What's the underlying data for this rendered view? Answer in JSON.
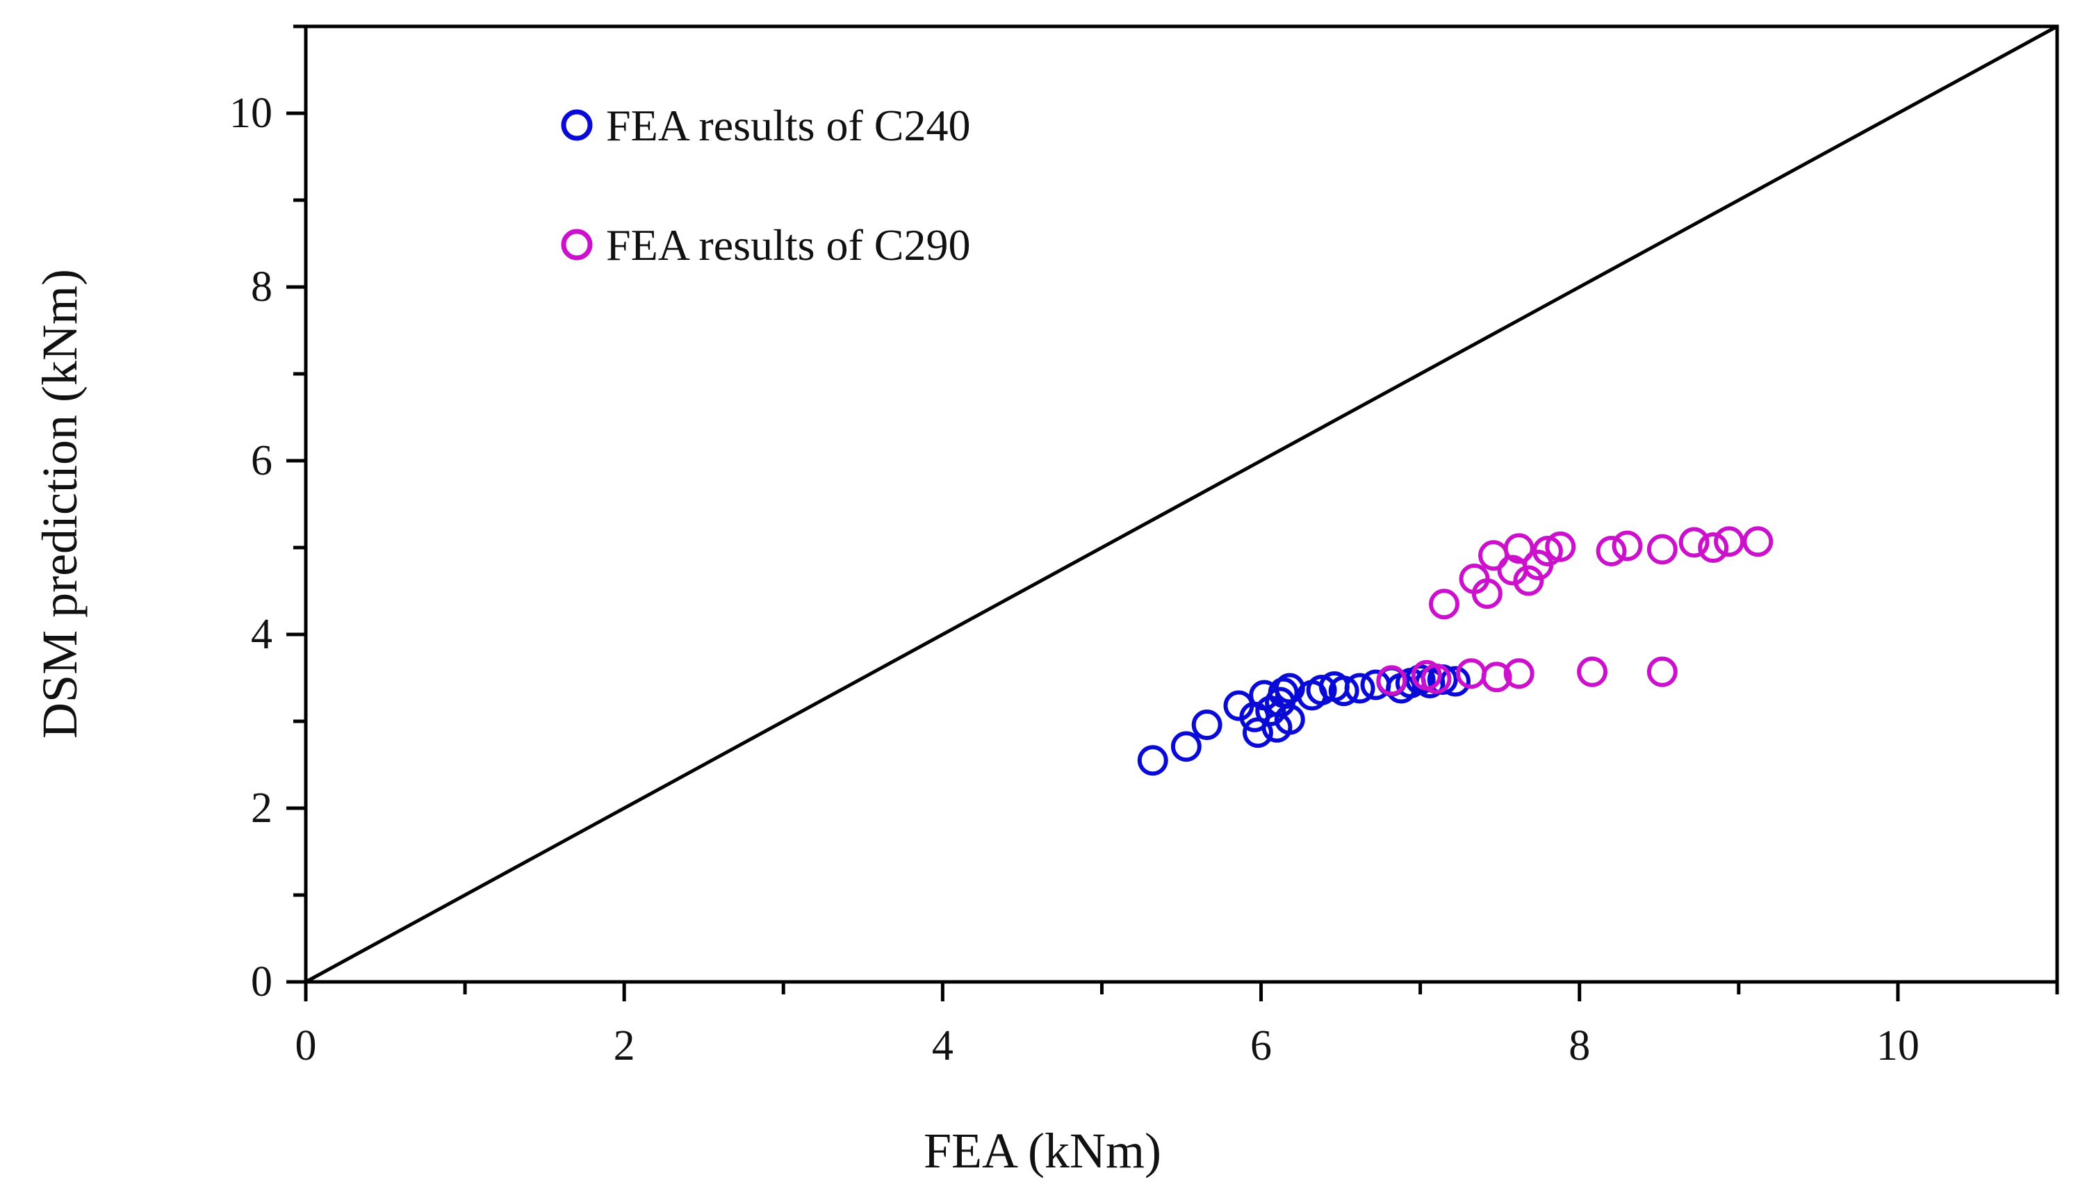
{
  "chart_data": {
    "type": "scatter",
    "title": "",
    "xlabel": "FEA (kNm)",
    "ylabel": "DSM prediction (kNm)",
    "xlim": [
      0,
      11
    ],
    "ylim": [
      0,
      11
    ],
    "x_ticks": [
      0,
      2,
      4,
      6,
      8,
      10
    ],
    "y_ticks": [
      0,
      2,
      4,
      6,
      8,
      10
    ],
    "x_ticks_minor": [
      1,
      3,
      5,
      7,
      9,
      11
    ],
    "y_ticks_minor": [
      1,
      3,
      5,
      7,
      9,
      11
    ],
    "grid": false,
    "legend_position": "top-left",
    "reference_line": {
      "name": "1:1 line",
      "from": [
        0,
        0
      ],
      "to": [
        11,
        11
      ],
      "color": "#000000"
    },
    "series": [
      {
        "name": "FEA results of C240",
        "color": "#0a0ad6",
        "points": [
          [
            5.32,
            2.55
          ],
          [
            5.53,
            2.71
          ],
          [
            5.66,
            2.96
          ],
          [
            5.86,
            3.18
          ],
          [
            5.96,
            3.05
          ],
          [
            5.98,
            2.87
          ],
          [
            6.02,
            3.3
          ],
          [
            6.06,
            3.12
          ],
          [
            6.1,
            2.93
          ],
          [
            6.12,
            3.22
          ],
          [
            6.14,
            3.33
          ],
          [
            6.18,
            3.38
          ],
          [
            6.18,
            3.02
          ],
          [
            6.32,
            3.3
          ],
          [
            6.38,
            3.36
          ],
          [
            6.46,
            3.4
          ],
          [
            6.52,
            3.35
          ],
          [
            6.62,
            3.38
          ],
          [
            6.72,
            3.42
          ],
          [
            6.82,
            3.46
          ],
          [
            6.88,
            3.38
          ],
          [
            6.94,
            3.44
          ],
          [
            7.0,
            3.48
          ],
          [
            7.06,
            3.44
          ],
          [
            7.14,
            3.48
          ],
          [
            7.22,
            3.46
          ]
        ]
      },
      {
        "name": "FEA results of C290",
        "color": "#cc11cc",
        "points": [
          [
            6.82,
            3.47
          ],
          [
            7.04,
            3.53
          ],
          [
            7.1,
            3.49
          ],
          [
            7.32,
            3.55
          ],
          [
            7.48,
            3.51
          ],
          [
            7.62,
            3.55
          ],
          [
            8.08,
            3.57
          ],
          [
            8.52,
            3.57
          ],
          [
            7.15,
            4.35
          ],
          [
            7.34,
            4.64
          ],
          [
            7.42,
            4.47
          ],
          [
            7.46,
            4.91
          ],
          [
            7.58,
            4.74
          ],
          [
            7.62,
            4.99
          ],
          [
            7.68,
            4.62
          ],
          [
            7.74,
            4.8
          ],
          [
            7.8,
            4.96
          ],
          [
            7.88,
            5.01
          ],
          [
            8.2,
            4.96
          ],
          [
            8.3,
            5.02
          ],
          [
            8.52,
            4.98
          ],
          [
            8.72,
            5.06
          ],
          [
            8.84,
            5.0
          ],
          [
            8.94,
            5.07
          ],
          [
            9.12,
            5.07
          ]
        ]
      }
    ]
  }
}
